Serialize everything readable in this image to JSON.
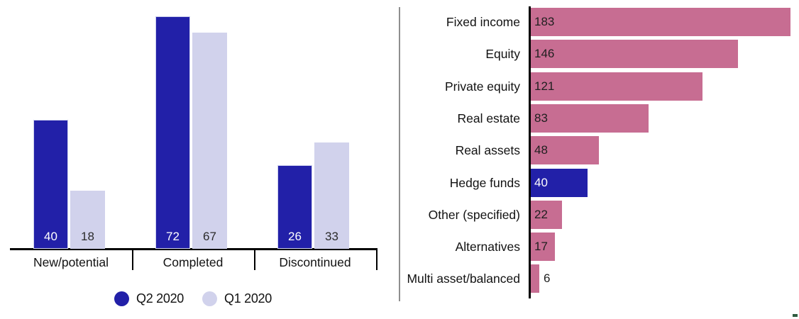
{
  "colors": {
    "q2_blue": "#2220a8",
    "q1_lavender": "#d1d2ec",
    "pink": "#c76d92",
    "highlight_blue": "#2220a8",
    "axis_black": "#000000",
    "divider_gray": "#8f8f8f",
    "label_text": "#121212",
    "value_text_dark": "#1f1f1f",
    "value_text_light": "#ffffff",
    "corner_mark_green": "#2e5c3f"
  },
  "chart_data": [
    {
      "type": "bar",
      "orientation": "vertical",
      "title": "",
      "categories": [
        "New/potential",
        "Completed",
        "Discontinued"
      ],
      "series": [
        {
          "name": "Q2 2020",
          "color": "#2220a8",
          "values": [
            40,
            72,
            26
          ]
        },
        {
          "name": "Q1 2020",
          "color": "#d1d2ec",
          "values": [
            18,
            67,
            33
          ]
        }
      ],
      "ylim": [
        0,
        76
      ],
      "grid": false,
      "legend_position": "bottom",
      "value_label_position": "inside-bottom",
      "value_label_colors": [
        "#ffffff",
        "#2b2b2b"
      ],
      "category_separators": true
    },
    {
      "type": "bar",
      "orientation": "horizontal",
      "title": "",
      "categories": [
        "Fixed income",
        "Equity",
        "Private equity",
        "Real estate",
        "Real assets",
        "Hedge funds",
        "Other (specified)",
        "Alternatives",
        "Multi asset/balanced"
      ],
      "values": [
        183,
        146,
        121,
        83,
        48,
        40,
        22,
        17,
        6
      ],
      "highlighted_category": "Hedge funds",
      "bar_color": "#c76d92",
      "highlight_color": "#2220a8",
      "xlim": [
        0,
        190
      ],
      "grid": false,
      "legend_position": "none",
      "value_label_position": "inside-left",
      "value_label_color_on_bar": "#1f1f1f",
      "value_label_color_on_highlight": "#ffffff"
    }
  ]
}
